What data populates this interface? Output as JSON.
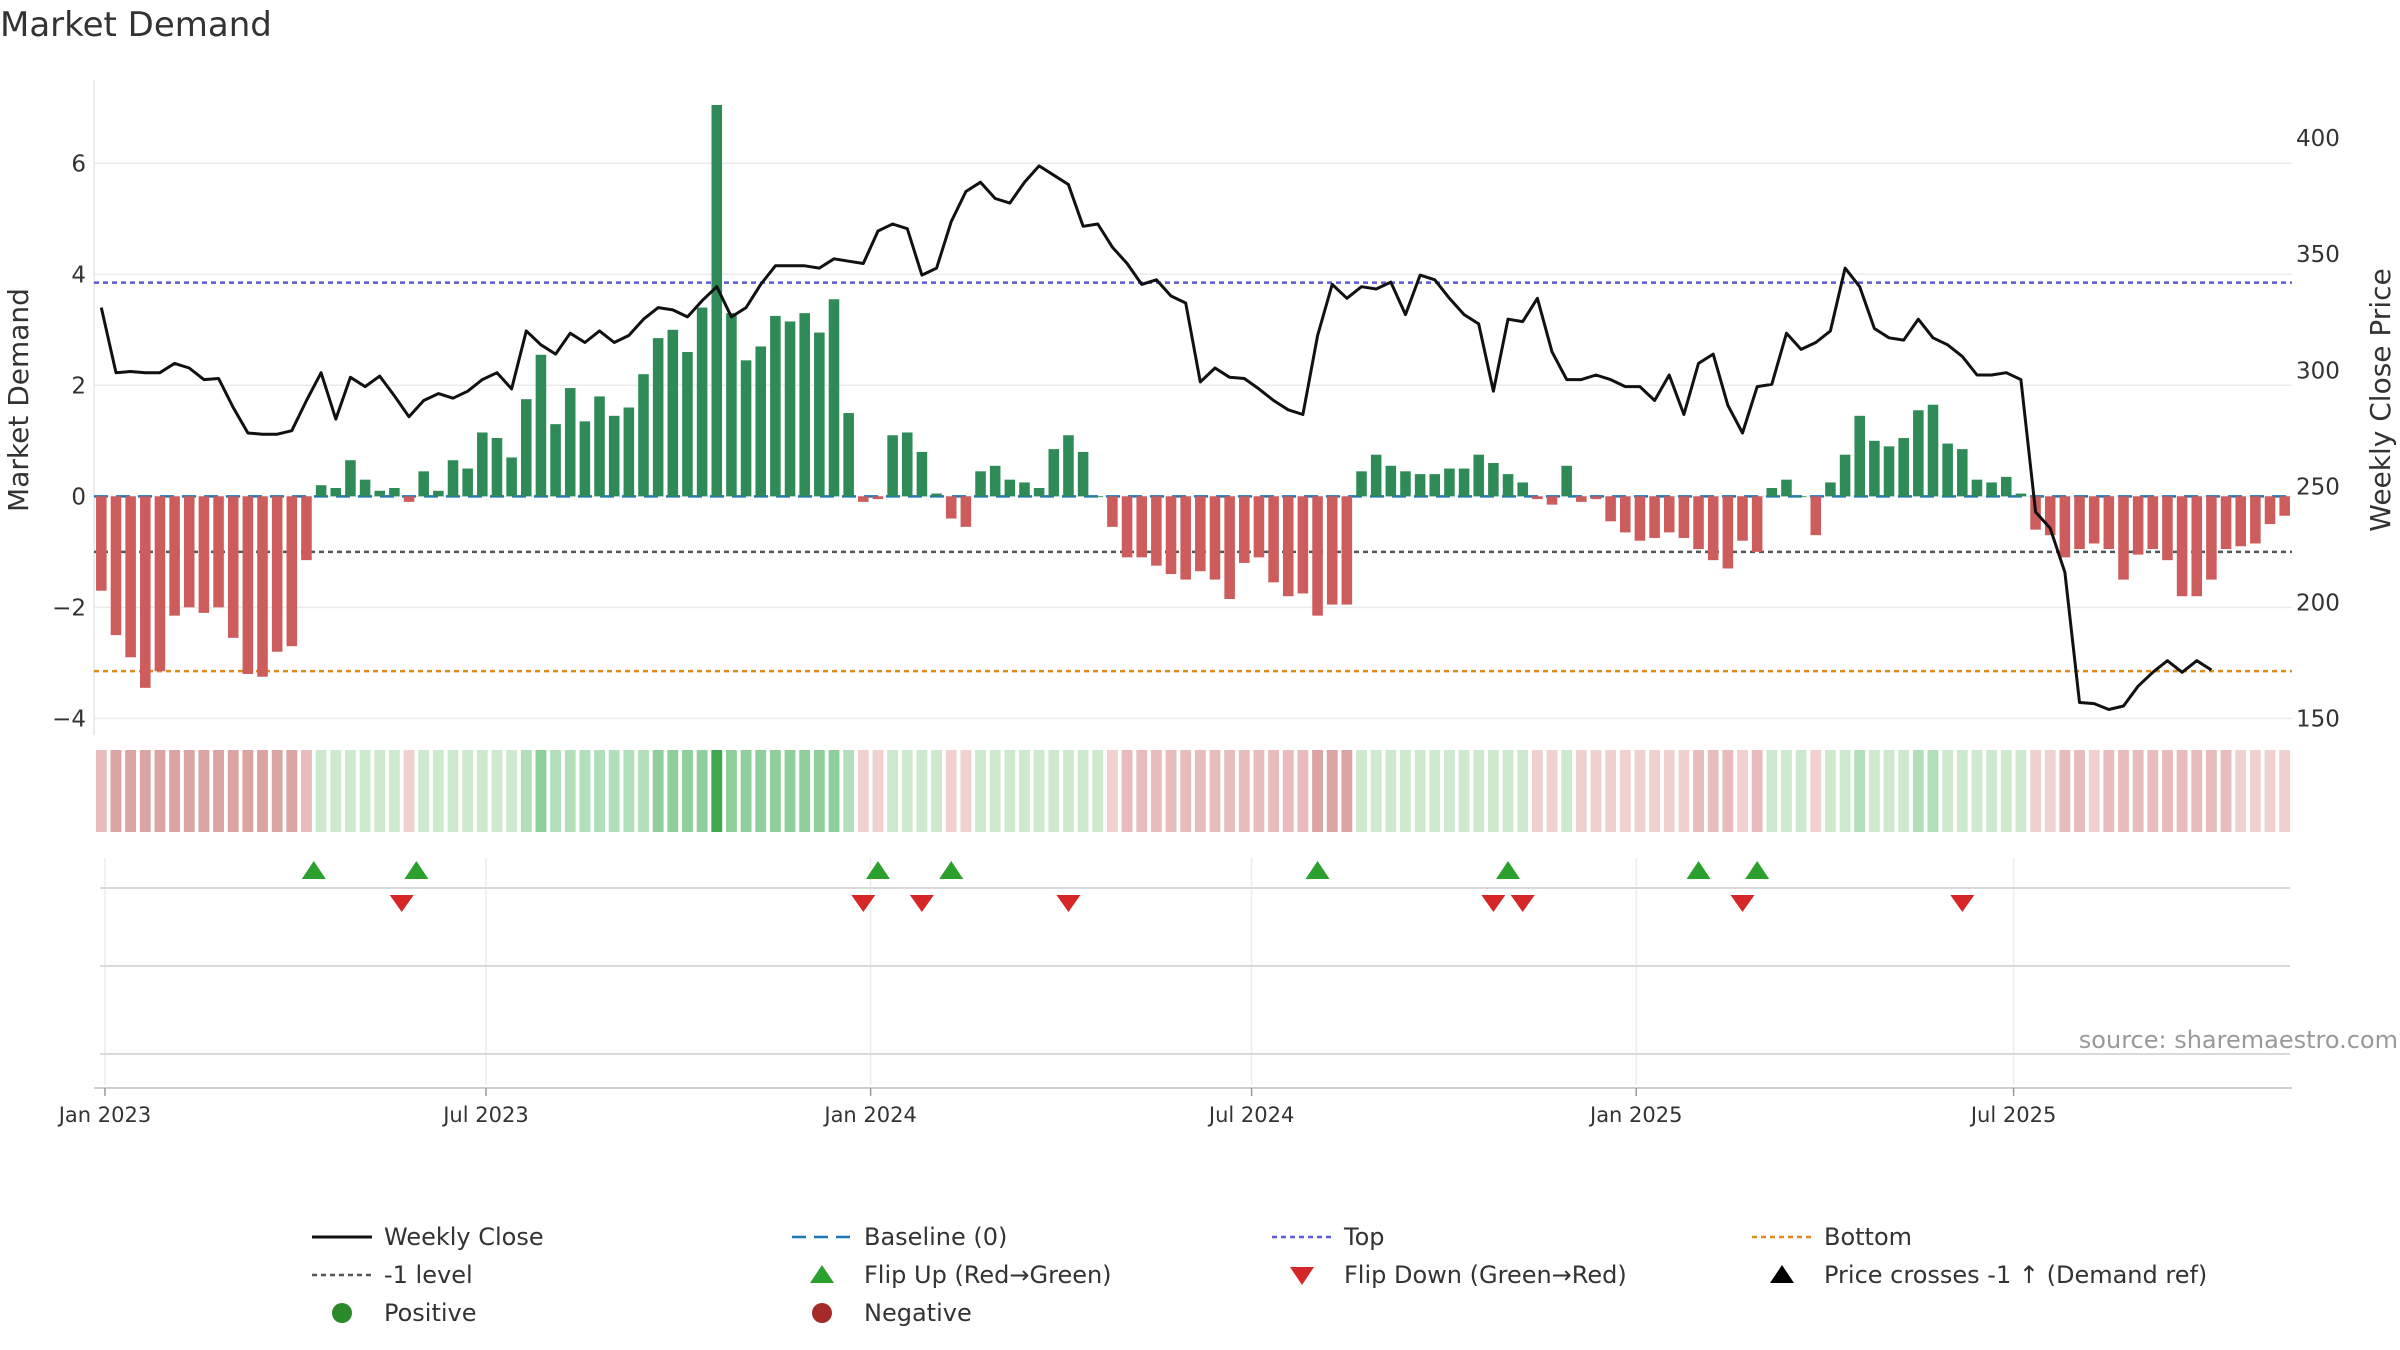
{
  "chart_data": {
    "type": "bar+line",
    "title": "Market Demand",
    "ylabel_left": "Market Demand",
    "ylabel_right": "Weekly Close Price",
    "source": "source: sharemaestro.com",
    "ylim_left": [
      -4.3,
      7.5
    ],
    "ylim_right": [
      143,
      425
    ],
    "left_ticks": [
      "6",
      "4",
      "2",
      "0",
      "−2",
      "−4"
    ],
    "left_tick_values": [
      6,
      4,
      2,
      0,
      -2,
      -4
    ],
    "right_ticks": [
      "400",
      "350",
      "300",
      "250",
      "200",
      "150"
    ],
    "right_tick_values": [
      400,
      350,
      300,
      250,
      200,
      150
    ],
    "x_ticks": [
      "Jan 2023",
      "Jul 2023",
      "Jan 2024",
      "Jul 2024",
      "Jan 2025",
      "Jul 2025"
    ],
    "x_tick_weeks": [
      0.75,
      26.75,
      53,
      79,
      105.25,
      131
    ],
    "reference_lines": {
      "top": 3.85,
      "minus_one": -1.0,
      "bottom": -3.15,
      "baseline": 0
    },
    "weeks_start": "2022-12-26",
    "demand": [
      -1.7,
      -2.5,
      -2.9,
      -3.45,
      -3.15,
      -2.15,
      -2.0,
      -2.1,
      -2.0,
      -2.55,
      -3.2,
      -3.25,
      -2.8,
      -2.7,
      -1.15,
      0.2,
      0.15,
      0.65,
      0.3,
      0.1,
      0.15,
      -0.1,
      0.45,
      0.1,
      0.65,
      0.5,
      1.15,
      1.05,
      0.7,
      1.75,
      2.55,
      1.3,
      1.95,
      1.35,
      1.8,
      1.45,
      1.6,
      2.2,
      2.85,
      3.0,
      2.6,
      3.4,
      7.05,
      3.3,
      2.45,
      2.7,
      3.25,
      3.15,
      3.3,
      2.95,
      3.55,
      1.5,
      -0.1,
      -0.05,
      1.1,
      1.15,
      0.8,
      0.05,
      -0.4,
      -0.55,
      0.45,
      0.55,
      0.3,
      0.25,
      0.15,
      0.85,
      1.1,
      0.8,
      0.0,
      -0.55,
      -1.1,
      -1.1,
      -1.25,
      -1.4,
      -1.5,
      -1.35,
      -1.5,
      -1.85,
      -1.2,
      -1.1,
      -1.55,
      -1.8,
      -1.75,
      -2.15,
      -1.95,
      -1.95,
      0.45,
      0.75,
      0.55,
      0.45,
      0.4,
      0.4,
      0.5,
      0.5,
      0.75,
      0.6,
      0.4,
      0.25,
      -0.05,
      -0.15,
      0.55,
      -0.1,
      -0.05,
      -0.45,
      -0.65,
      -0.8,
      -0.75,
      -0.65,
      -0.75,
      -0.95,
      -1.15,
      -1.3,
      -0.8,
      -1.0,
      0.15,
      0.3,
      0.0,
      -0.7,
      0.25,
      0.75,
      1.45,
      1.0,
      0.9,
      1.05,
      1.55,
      1.65,
      0.95,
      0.85,
      0.3,
      0.25,
      0.35,
      0.05,
      -0.6,
      -0.7,
      -1.1,
      -0.95,
      -0.85,
      -0.95,
      -1.5,
      -1.05,
      -0.95,
      -1.15,
      -1.8,
      -1.8,
      -1.5,
      -0.95,
      -0.9,
      -0.85,
      -0.5,
      -0.35
    ],
    "weekly_close": [
      327,
      299,
      299.5,
      299,
      299,
      303,
      301,
      296,
      296.5,
      284,
      273,
      272.5,
      272.5,
      274,
      287,
      299,
      279,
      297,
      293,
      297.5,
      289,
      280,
      287,
      290,
      288,
      291,
      296,
      299,
      292,
      317,
      311,
      307,
      316,
      312,
      317,
      312,
      315,
      322,
      327,
      326,
      323,
      330,
      336,
      323,
      327,
      337,
      345,
      345,
      345,
      344,
      348,
      347,
      346,
      360,
      363,
      361,
      341,
      344,
      364,
      377,
      381,
      374,
      372,
      381,
      388,
      384,
      380,
      362,
      363,
      353,
      346,
      337,
      339,
      332,
      329,
      295,
      301,
      297,
      296.5,
      292,
      287,
      283,
      281,
      315,
      337,
      331,
      336,
      335,
      338,
      324,
      341,
      339,
      331,
      324,
      320,
      291,
      322,
      321,
      331,
      308,
      296,
      296,
      298,
      296,
      293,
      293,
      287,
      298,
      281,
      303,
      307,
      285,
      273,
      293,
      294,
      316,
      309,
      312,
      317,
      344,
      336,
      318,
      314,
      313,
      322,
      314,
      311,
      306,
      298,
      298,
      299,
      296,
      239,
      232,
      213,
      157,
      156.5,
      154,
      155.5,
      164,
      170,
      175,
      170,
      175,
      171
    ],
    "strip_colors": [
      "neg",
      "neg",
      "neg",
      "neg",
      "neg",
      "neg",
      "neg",
      "neg",
      "neg",
      "neg",
      "neg",
      "neg",
      "neg",
      "neg",
      "neg"
    ],
    "flip_up_weeks": [
      15,
      22,
      53.5,
      58.5,
      83.5,
      96.5,
      109.5,
      113.5
    ],
    "flip_down_weeks": [
      21,
      52.5,
      56.5,
      66.5,
      95.5,
      97.5,
      112.5,
      127.5
    ],
    "colors": {
      "positive": "#2e8b57",
      "negative": "#cd5c5c",
      "line": "#111111",
      "top": "#5b5bd6",
      "bottom": "#e08a1e",
      "minus_one": "#555555",
      "baseline": "#1f77b4",
      "flip_up": "#2ca02c",
      "flip_down": "#d62728"
    },
    "legend": [
      {
        "label": "Weekly Close",
        "marker": "line"
      },
      {
        "label": "Baseline (0)",
        "marker": "baseline"
      },
      {
        "label": "Top",
        "marker": "top"
      },
      {
        "label": "Bottom",
        "marker": "bottom"
      },
      {
        "label": "-1 level",
        "marker": "minus_one"
      },
      {
        "label": "Flip Up (Red→Green)",
        "marker": "flip_up"
      },
      {
        "label": "Flip Down (Green→Red)",
        "marker": "flip_down"
      },
      {
        "label": "Price crosses -1 ↑ (Demand ref)",
        "marker": "cross"
      },
      {
        "label": "Positive",
        "marker": "positive"
      },
      {
        "label": "Negative",
        "marker": "negative"
      }
    ]
  }
}
